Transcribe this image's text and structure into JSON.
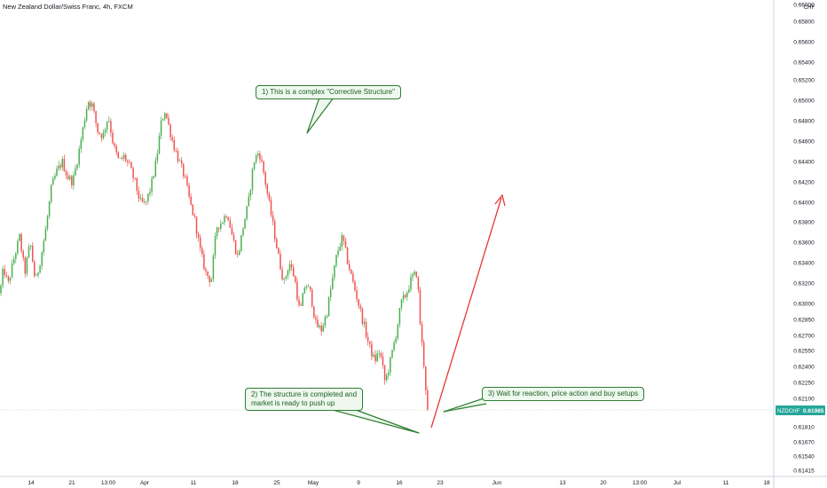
{
  "header": {
    "title": "New Zealand Dollar/Swiss Franc, 4h, FXCM"
  },
  "price_axis": {
    "unit": "CHF"
  },
  "current_price": {
    "symbol": "NZDCHF",
    "value": "0.61985",
    "color": "#26a69a"
  },
  "annotations": {
    "a1": "1) This is a complex \"Corrective Structure\"",
    "a2_line1": "2) The structure is completed and",
    "a2_line2": "market is ready to push up",
    "a3": "3) Wait for reaction, price action and buy setups"
  },
  "colors": {
    "up": "#26a69a",
    "up_fill": "#4caf50",
    "down": "#ef5350",
    "projection": "#e53935",
    "callout_border": "#2e7d32"
  },
  "chart_data": {
    "type": "candlestick",
    "title": "New Zealand Dollar/Swiss Franc, 4h, FXCM",
    "y_axis": {
      "ticks": [
        0.61415,
        0.6154,
        0.6167,
        0.6181,
        0.61985,
        0.621,
        0.6225,
        0.624,
        0.6255,
        0.627,
        0.6285,
        0.63,
        0.632,
        0.634,
        0.636,
        0.638,
        0.64,
        0.642,
        0.644,
        0.646,
        0.648,
        0.65,
        0.652,
        0.654,
        0.656,
        0.658,
        0.66
      ],
      "tick_labels": [
        "0.61415",
        "0.61540",
        "0.61670",
        "0.61810",
        "0.61985",
        "0.62100",
        "0.62250",
        "0.62400",
        "0.62550",
        "0.62700",
        "0.62850",
        "0.63000",
        "0.63200",
        "0.63400",
        "0.63600",
        "0.63800",
        "0.64000",
        "0.64200",
        "0.64400",
        "0.64600",
        "0.64800",
        "0.65000",
        "0.65200",
        "0.65400",
        "0.65600",
        "0.65800",
        "0.66000"
      ]
    },
    "x_axis": {
      "tick_labels": [
        "14",
        "21",
        "13:00",
        "Apr",
        "11",
        "18",
        "25",
        "May",
        "9",
        "16",
        "23",
        "Jun",
        "13",
        "20",
        "13:00",
        "Jul",
        "11",
        "18"
      ]
    },
    "path": [
      [
        0,
        0.631
      ],
      [
        4,
        0.6335
      ],
      [
        9,
        0.6318
      ],
      [
        16,
        0.6345
      ],
      [
        22,
        0.6365
      ],
      [
        28,
        0.633
      ],
      [
        34,
        0.636
      ],
      [
        40,
        0.632
      ],
      [
        46,
        0.6345
      ],
      [
        52,
        0.6375
      ],
      [
        58,
        0.6415
      ],
      [
        64,
        0.643
      ],
      [
        70,
        0.644
      ],
      [
        76,
        0.6425
      ],
      [
        82,
        0.642
      ],
      [
        88,
        0.6445
      ],
      [
        94,
        0.6475
      ],
      [
        99,
        0.65
      ],
      [
        104,
        0.6495
      ],
      [
        110,
        0.647
      ],
      [
        116,
        0.6465
      ],
      [
        122,
        0.6485
      ],
      [
        128,
        0.6455
      ],
      [
        134,
        0.644
      ],
      [
        140,
        0.6445
      ],
      [
        146,
        0.6435
      ],
      [
        152,
        0.642
      ],
      [
        158,
        0.64
      ],
      [
        164,
        0.6398
      ],
      [
        170,
        0.6415
      ],
      [
        176,
        0.644
      ],
      [
        182,
        0.648
      ],
      [
        186,
        0.649
      ],
      [
        190,
        0.6475
      ],
      [
        196,
        0.6455
      ],
      [
        202,
        0.644
      ],
      [
        208,
        0.6425
      ],
      [
        214,
        0.64
      ],
      [
        220,
        0.638
      ],
      [
        226,
        0.635
      ],
      [
        232,
        0.633
      ],
      [
        238,
        0.6322
      ],
      [
        244,
        0.6375
      ],
      [
        250,
        0.638
      ],
      [
        256,
        0.639
      ],
      [
        262,
        0.6365
      ],
      [
        268,
        0.6345
      ],
      [
        274,
        0.6375
      ],
      [
        280,
        0.64
      ],
      [
        286,
        0.644
      ],
      [
        292,
        0.645
      ],
      [
        297,
        0.643
      ],
      [
        302,
        0.6405
      ],
      [
        308,
        0.6375
      ],
      [
        314,
        0.6345
      ],
      [
        320,
        0.632
      ],
      [
        326,
        0.634
      ],
      [
        332,
        0.6325
      ],
      [
        338,
        0.629
      ],
      [
        344,
        0.632
      ],
      [
        350,
        0.631
      ],
      [
        356,
        0.628
      ],
      [
        362,
        0.6275
      ],
      [
        368,
        0.629
      ],
      [
        374,
        0.632
      ],
      [
        380,
        0.635
      ],
      [
        386,
        0.6365
      ],
      [
        392,
        0.634
      ],
      [
        398,
        0.632
      ],
      [
        404,
        0.63
      ],
      [
        410,
        0.628
      ],
      [
        416,
        0.626
      ],
      [
        422,
        0.6245
      ],
      [
        428,
        0.6255
      ],
      [
        434,
        0.6225
      ],
      [
        440,
        0.6245
      ],
      [
        446,
        0.627
      ],
      [
        452,
        0.63
      ],
      [
        458,
        0.631
      ],
      [
        464,
        0.6325
      ],
      [
        470,
        0.633
      ],
      [
        474,
        0.6275
      ],
      [
        478,
        0.624
      ],
      [
        483,
        0.6185
      ]
    ]
  }
}
